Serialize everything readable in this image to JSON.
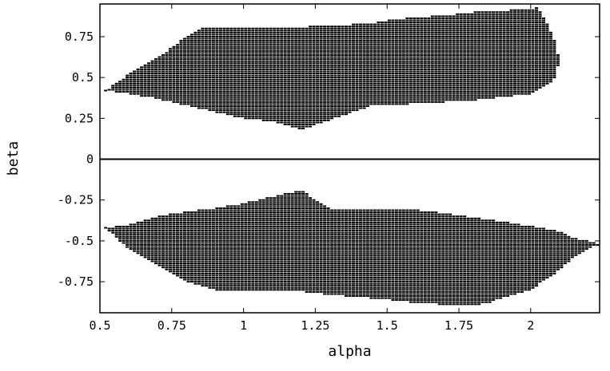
{
  "chart_data": {
    "type": "scatter",
    "title": "",
    "xlabel": "alpha",
    "ylabel": "beta",
    "xlim": [
      0.5,
      2.24
    ],
    "ylim": [
      -0.94,
      0.95
    ],
    "x_ticks": [
      {
        "value": 0.5,
        "label": "0.5"
      },
      {
        "value": 0.75,
        "label": "0.75"
      },
      {
        "value": 1,
        "label": "1"
      },
      {
        "value": 1.25,
        "label": "1.25"
      },
      {
        "value": 1.5,
        "label": "1.5"
      },
      {
        "value": 1.75,
        "label": "1.75"
      },
      {
        "value": 2,
        "label": "2"
      }
    ],
    "y_ticks": [
      {
        "value": 0.75,
        "label": "0.75"
      },
      {
        "value": 0.5,
        "label": "0.5"
      },
      {
        "value": 0.25,
        "label": "0.25"
      },
      {
        "value": 0,
        "label": "0"
      },
      {
        "value": -0.25,
        "label": "-0.25"
      },
      {
        "value": -0.5,
        "label": "-0.5"
      },
      {
        "value": -0.75,
        "label": "-0.75"
      }
    ],
    "zero_line": true,
    "grid": false,
    "legend": "none",
    "point_color": "#000000",
    "region_upper_envelope": {
      "alpha": [
        0.52,
        0.6,
        0.7,
        0.8,
        0.85,
        1.0,
        1.1,
        1.2,
        1.3,
        1.45,
        1.5,
        1.6,
        1.7,
        1.8,
        1.9,
        2.0,
        2.02,
        2.05,
        2.08,
        2.1
      ],
      "beta_max": [
        0.42,
        0.52,
        0.62,
        0.75,
        0.8,
        0.8,
        0.81,
        0.81,
        0.82,
        0.83,
        0.85,
        0.87,
        0.88,
        0.9,
        0.91,
        0.92,
        0.93,
        0.86,
        0.75,
        0.6
      ],
      "beta_min": [
        0.42,
        0.4,
        0.37,
        0.33,
        0.31,
        0.25,
        0.23,
        0.18,
        0.24,
        0.33,
        0.33,
        0.34,
        0.35,
        0.36,
        0.38,
        0.4,
        0.42,
        0.45,
        0.48,
        0.6
      ]
    },
    "region_lower_envelope": {
      "alpha": [
        0.52,
        0.6,
        0.7,
        0.8,
        0.9,
        1.0,
        1.1,
        1.2,
        1.3,
        1.5,
        1.6,
        1.7,
        1.78,
        1.85,
        1.9,
        2.0,
        2.1,
        2.15,
        2.2,
        2.24
      ],
      "beta_max": [
        -0.42,
        -0.4,
        -0.35,
        -0.32,
        -0.3,
        -0.27,
        -0.23,
        -0.19,
        -0.3,
        -0.31,
        -0.31,
        -0.33,
        -0.35,
        -0.37,
        -0.38,
        -0.41,
        -0.44,
        -0.48,
        -0.5,
        -0.52
      ],
      "beta_min": [
        -0.42,
        -0.55,
        -0.65,
        -0.75,
        -0.8,
        -0.8,
        -0.8,
        -0.81,
        -0.83,
        -0.86,
        -0.88,
        -0.89,
        -0.9,
        -0.88,
        -0.85,
        -0.8,
        -0.68,
        -0.6,
        -0.55,
        -0.52
      ]
    }
  }
}
